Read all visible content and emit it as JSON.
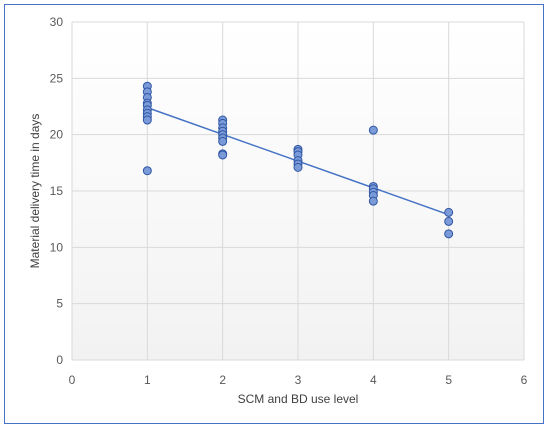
{
  "chart_data": {
    "type": "scatter",
    "title": "",
    "xlabel": "SCM and BD use level",
    "ylabel": "Material delivery time in days",
    "xlim": [
      0,
      6
    ],
    "ylim": [
      0,
      30
    ],
    "x_ticks": [
      "0",
      "1",
      "2",
      "3",
      "4",
      "5",
      "6"
    ],
    "y_ticks": [
      "0",
      "5",
      "10",
      "15",
      "20",
      "25",
      "30"
    ],
    "grid": true,
    "legend": "none",
    "series": [
      {
        "points": [
          [
            1,
            24.3
          ],
          [
            1,
            23.8
          ],
          [
            1,
            23.3
          ],
          [
            1,
            22.8
          ],
          [
            1,
            22.6
          ],
          [
            1,
            22.2
          ],
          [
            1,
            21.9
          ],
          [
            1,
            21.6
          ],
          [
            1,
            21.3
          ],
          [
            1,
            16.8
          ],
          [
            2,
            21.3
          ],
          [
            2,
            21.0
          ],
          [
            2,
            20.6
          ],
          [
            2,
            20.3
          ],
          [
            2,
            20.0
          ],
          [
            2,
            19.7
          ],
          [
            2,
            19.4
          ],
          [
            2,
            18.3
          ],
          [
            2,
            18.2
          ],
          [
            3,
            18.7
          ],
          [
            3,
            18.5
          ],
          [
            3,
            18.2
          ],
          [
            3,
            17.7
          ],
          [
            3,
            17.4
          ],
          [
            3,
            17.1
          ],
          [
            4,
            20.4
          ],
          [
            4,
            15.4
          ],
          [
            4,
            15.2
          ],
          [
            4,
            14.9
          ],
          [
            4,
            14.6
          ],
          [
            4,
            14.1
          ],
          [
            5,
            13.1
          ],
          [
            5,
            12.3
          ],
          [
            5,
            11.2
          ]
        ]
      }
    ],
    "trendline": {
      "type": "linear",
      "x": [
        1,
        5
      ],
      "y": [
        22.4,
        12.9
      ]
    },
    "colors": {
      "marker_fill": "#7a9ad8",
      "marker_stroke": "#2f55a4",
      "trendline": "#4472c4",
      "gridline": "#d9d9d9",
      "frame": "#4472c4"
    }
  }
}
